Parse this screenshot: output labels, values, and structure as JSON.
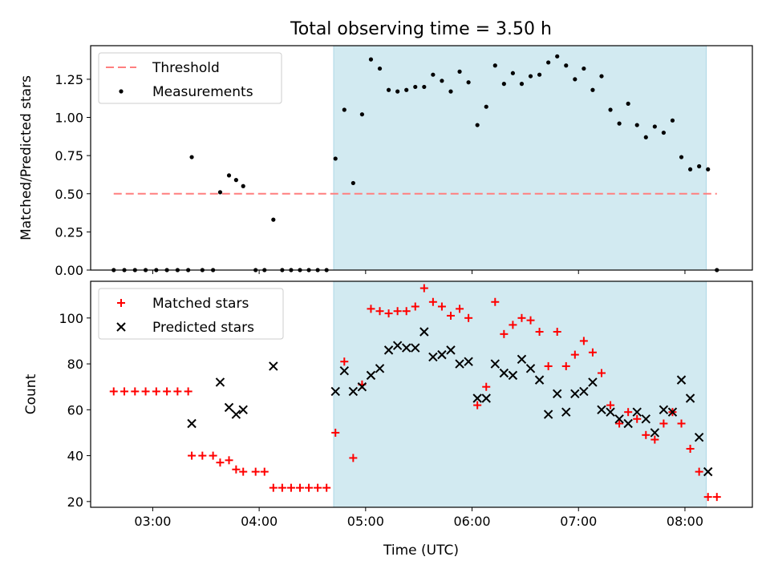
{
  "chart_data": [
    {
      "type": "scatter",
      "title": "Total observing time = 3.50 h",
      "xlabel": "",
      "ylabel": "Matched/Predicted stars",
      "ylim": [
        0,
        1.47
      ],
      "y_ticks": [
        0.0,
        0.25,
        0.5,
        0.75,
        1.0,
        1.25
      ],
      "y_tick_labels": [
        "0.00",
        "0.25",
        "0.50",
        "0.75",
        "1.00",
        "1.25"
      ],
      "x_ticks": [
        "03:00",
        "04:00",
        "05:00",
        "06:00",
        "07:00",
        "08:00"
      ],
      "x_tick_labels_visible": false,
      "xlim": [
        "02:25",
        "08:38"
      ],
      "shaded_span": {
        "start": "04:42",
        "end": "08:12",
        "color": "#add8e6"
      },
      "legend": {
        "placement": "upper-left",
        "entries": [
          "Threshold",
          "Measurements"
        ]
      },
      "threshold": {
        "name": "Threshold",
        "value": 0.5,
        "x_start": "02:38",
        "x_end": "08:18",
        "color": "#ff7f7f"
      },
      "series": [
        {
          "name": "Measurements",
          "color": "#000000",
          "points": [
            [
              "02:38",
              0.0
            ],
            [
              "02:44",
              0.0
            ],
            [
              "02:50",
              0.0
            ],
            [
              "02:56",
              0.0
            ],
            [
              "03:02",
              0.0
            ],
            [
              "03:08",
              0.0
            ],
            [
              "03:14",
              0.0
            ],
            [
              "03:20",
              0.0
            ],
            [
              "03:22",
              0.74
            ],
            [
              "03:28",
              0.0
            ],
            [
              "03:34",
              0.0
            ],
            [
              "03:38",
              0.51
            ],
            [
              "03:43",
              0.62
            ],
            [
              "03:47",
              0.59
            ],
            [
              "03:51",
              0.55
            ],
            [
              "03:58",
              0.0
            ],
            [
              "04:03",
              0.0
            ],
            [
              "04:08",
              0.33
            ],
            [
              "04:13",
              0.0
            ],
            [
              "04:18",
              0.0
            ],
            [
              "04:23",
              0.0
            ],
            [
              "04:28",
              0.0
            ],
            [
              "04:33",
              0.0
            ],
            [
              "04:38",
              0.0
            ],
            [
              "04:43",
              0.73
            ],
            [
              "04:48",
              1.05
            ],
            [
              "04:53",
              0.57
            ],
            [
              "04:58",
              1.02
            ],
            [
              "05:03",
              1.38
            ],
            [
              "05:08",
              1.32
            ],
            [
              "05:13",
              1.18
            ],
            [
              "05:18",
              1.17
            ],
            [
              "05:23",
              1.18
            ],
            [
              "05:28",
              1.2
            ],
            [
              "05:33",
              1.2
            ],
            [
              "05:38",
              1.28
            ],
            [
              "05:43",
              1.24
            ],
            [
              "05:48",
              1.17
            ],
            [
              "05:53",
              1.3
            ],
            [
              "05:58",
              1.23
            ],
            [
              "06:03",
              0.95
            ],
            [
              "06:08",
              1.07
            ],
            [
              "06:13",
              1.34
            ],
            [
              "06:18",
              1.22
            ],
            [
              "06:23",
              1.29
            ],
            [
              "06:28",
              1.22
            ],
            [
              "06:33",
              1.27
            ],
            [
              "06:38",
              1.28
            ],
            [
              "06:43",
              1.36
            ],
            [
              "06:48",
              1.4
            ],
            [
              "06:53",
              1.34
            ],
            [
              "06:58",
              1.25
            ],
            [
              "07:03",
              1.32
            ],
            [
              "07:08",
              1.18
            ],
            [
              "07:13",
              1.27
            ],
            [
              "07:18",
              1.05
            ],
            [
              "07:23",
              0.96
            ],
            [
              "07:28",
              1.09
            ],
            [
              "07:33",
              0.95
            ],
            [
              "07:38",
              0.87
            ],
            [
              "07:43",
              0.94
            ],
            [
              "07:48",
              0.9
            ],
            [
              "07:53",
              0.98
            ],
            [
              "07:58",
              0.74
            ],
            [
              "08:03",
              0.66
            ],
            [
              "08:08",
              0.68
            ],
            [
              "08:13",
              0.66
            ],
            [
              "08:18",
              0.0
            ]
          ]
        }
      ]
    },
    {
      "type": "scatter",
      "title": "",
      "xlabel": "Time (UTC)",
      "ylabel": "Count",
      "ylim": [
        17.5,
        116
      ],
      "y_ticks": [
        20,
        40,
        60,
        80,
        100
      ],
      "y_tick_labels": [
        "20",
        "40",
        "60",
        "80",
        "100"
      ],
      "x_ticks": [
        "03:00",
        "04:00",
        "05:00",
        "06:00",
        "07:00",
        "08:00"
      ],
      "x_tick_labels": [
        "03:00",
        "04:00",
        "05:00",
        "06:00",
        "07:00",
        "08:00"
      ],
      "xlim": [
        "02:25",
        "08:38"
      ],
      "shaded_span": {
        "start": "04:42",
        "end": "08:12",
        "color": "#add8e6"
      },
      "legend": {
        "placement": "upper-left",
        "entries": [
          "Matched stars",
          "Predicted stars"
        ]
      },
      "series": [
        {
          "name": "Matched stars",
          "marker": "plus",
          "color": "#ff0000",
          "points": [
            [
              "02:38",
              68
            ],
            [
              "02:44",
              68
            ],
            [
              "02:50",
              68
            ],
            [
              "02:56",
              68
            ],
            [
              "03:02",
              68
            ],
            [
              "03:08",
              68
            ],
            [
              "03:14",
              68
            ],
            [
              "03:20",
              68
            ],
            [
              "03:22",
              40
            ],
            [
              "03:28",
              40
            ],
            [
              "03:34",
              40
            ],
            [
              "03:38",
              37
            ],
            [
              "03:43",
              38
            ],
            [
              "03:47",
              34
            ],
            [
              "03:51",
              33
            ],
            [
              "03:58",
              33
            ],
            [
              "04:03",
              33
            ],
            [
              "04:08",
              26
            ],
            [
              "04:13",
              26
            ],
            [
              "04:18",
              26
            ],
            [
              "04:23",
              26
            ],
            [
              "04:28",
              26
            ],
            [
              "04:33",
              26
            ],
            [
              "04:38",
              26
            ],
            [
              "04:43",
              50
            ],
            [
              "04:48",
              81
            ],
            [
              "04:53",
              39
            ],
            [
              "04:58",
              71
            ],
            [
              "05:03",
              104
            ],
            [
              "05:08",
              103
            ],
            [
              "05:13",
              102
            ],
            [
              "05:18",
              103
            ],
            [
              "05:23",
              103
            ],
            [
              "05:28",
              105
            ],
            [
              "05:33",
              113
            ],
            [
              "05:38",
              107
            ],
            [
              "05:43",
              105
            ],
            [
              "05:48",
              101
            ],
            [
              "05:53",
              104
            ],
            [
              "05:58",
              100
            ],
            [
              "06:03",
              62
            ],
            [
              "06:08",
              70
            ],
            [
              "06:13",
              107
            ],
            [
              "06:18",
              93
            ],
            [
              "06:23",
              97
            ],
            [
              "06:28",
              100
            ],
            [
              "06:33",
              99
            ],
            [
              "06:38",
              94
            ],
            [
              "06:43",
              79
            ],
            [
              "06:48",
              94
            ],
            [
              "06:53",
              79
            ],
            [
              "06:58",
              84
            ],
            [
              "07:03",
              90
            ],
            [
              "07:08",
              85
            ],
            [
              "07:13",
              76
            ],
            [
              "07:18",
              62
            ],
            [
              "07:23",
              54
            ],
            [
              "07:28",
              59
            ],
            [
              "07:33",
              56
            ],
            [
              "07:38",
              49
            ],
            [
              "07:43",
              47
            ],
            [
              "07:48",
              54
            ],
            [
              "07:53",
              59
            ],
            [
              "07:58",
              54
            ],
            [
              "08:03",
              43
            ],
            [
              "08:08",
              33
            ],
            [
              "08:13",
              22
            ],
            [
              "08:18",
              22
            ]
          ]
        },
        {
          "name": "Predicted stars",
          "marker": "x",
          "color": "#000000",
          "points": [
            [
              "03:22",
              54
            ],
            [
              "03:38",
              72
            ],
            [
              "03:43",
              61
            ],
            [
              "03:47",
              58
            ],
            [
              "03:51",
              60
            ],
            [
              "04:08",
              79
            ],
            [
              "04:43",
              68
            ],
            [
              "04:48",
              77
            ],
            [
              "04:53",
              68
            ],
            [
              "04:58",
              70
            ],
            [
              "05:03",
              75
            ],
            [
              "05:08",
              78
            ],
            [
              "05:13",
              86
            ],
            [
              "05:18",
              88
            ],
            [
              "05:23",
              87
            ],
            [
              "05:28",
              87
            ],
            [
              "05:33",
              94
            ],
            [
              "05:38",
              83
            ],
            [
              "05:43",
              84
            ],
            [
              "05:48",
              86
            ],
            [
              "05:53",
              80
            ],
            [
              "05:58",
              81
            ],
            [
              "06:03",
              65
            ],
            [
              "06:08",
              65
            ],
            [
              "06:13",
              80
            ],
            [
              "06:18",
              76
            ],
            [
              "06:23",
              75
            ],
            [
              "06:28",
              82
            ],
            [
              "06:33",
              78
            ],
            [
              "06:38",
              73
            ],
            [
              "06:43",
              58
            ],
            [
              "06:48",
              67
            ],
            [
              "06:53",
              59
            ],
            [
              "06:58",
              67
            ],
            [
              "07:03",
              68
            ],
            [
              "07:08",
              72
            ],
            [
              "07:13",
              60
            ],
            [
              "07:18",
              59
            ],
            [
              "07:23",
              56
            ],
            [
              "07:28",
              54
            ],
            [
              "07:33",
              59
            ],
            [
              "07:38",
              56
            ],
            [
              "07:43",
              50
            ],
            [
              "07:48",
              60
            ],
            [
              "07:53",
              59
            ],
            [
              "07:58",
              73
            ],
            [
              "08:03",
              65
            ],
            [
              "08:08",
              48
            ],
            [
              "08:13",
              33
            ]
          ]
        }
      ]
    }
  ]
}
